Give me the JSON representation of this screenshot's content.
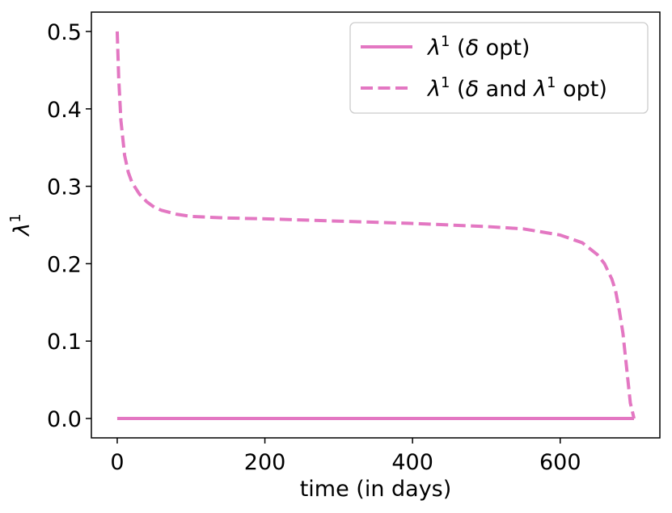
{
  "chart_data": {
    "type": "line",
    "title": "",
    "xlabel": "time (in days)",
    "ylabel_base": "λ",
    "ylabel_sup": "1",
    "xlim": [
      -35,
      735
    ],
    "ylim": [
      -0.025,
      0.525
    ],
    "xticks": [
      0,
      200,
      400,
      600
    ],
    "xtick_labels": [
      "0",
      "200",
      "400",
      "600"
    ],
    "yticks": [
      0.0,
      0.1,
      0.2,
      0.3,
      0.4,
      0.5
    ],
    "ytick_labels": [
      "0.0",
      "0.1",
      "0.2",
      "0.3",
      "0.4",
      "0.5"
    ],
    "grid": false,
    "legend_position": "top-right",
    "series": [
      {
        "label_parts": [
          {
            "t": "λ",
            "italic": true
          },
          {
            "t": "1",
            "sup": true
          },
          {
            "t": " ("
          },
          {
            "t": "δ",
            "italic": true
          },
          {
            "t": " opt)"
          }
        ],
        "color": "#e377c2",
        "dash": "solid",
        "x": [
          0,
          100,
          200,
          300,
          400,
          500,
          600,
          700
        ],
        "y": [
          0,
          0,
          0,
          0,
          0,
          0,
          0,
          0
        ]
      },
      {
        "label_parts": [
          {
            "t": "λ",
            "italic": true
          },
          {
            "t": "1",
            "sup": true
          },
          {
            "t": " ("
          },
          {
            "t": "δ",
            "italic": true
          },
          {
            "t": " and "
          },
          {
            "t": "λ",
            "italic": true
          },
          {
            "t": "1",
            "sup": true
          },
          {
            "t": " opt)"
          }
        ],
        "color": "#e377c2",
        "dash": "dashed",
        "x": [
          0,
          2,
          5,
          10,
          15,
          20,
          30,
          40,
          50,
          60,
          80,
          100,
          150,
          200,
          300,
          400,
          500,
          550,
          600,
          630,
          650,
          660,
          670,
          675,
          680,
          685,
          690,
          695,
          700
        ],
        "y": [
          0.5,
          0.44,
          0.385,
          0.34,
          0.318,
          0.305,
          0.29,
          0.28,
          0.273,
          0.269,
          0.264,
          0.261,
          0.259,
          0.258,
          0.255,
          0.252,
          0.248,
          0.245,
          0.237,
          0.227,
          0.212,
          0.2,
          0.18,
          0.165,
          0.14,
          0.11,
          0.065,
          0.02,
          0.0
        ]
      }
    ]
  }
}
